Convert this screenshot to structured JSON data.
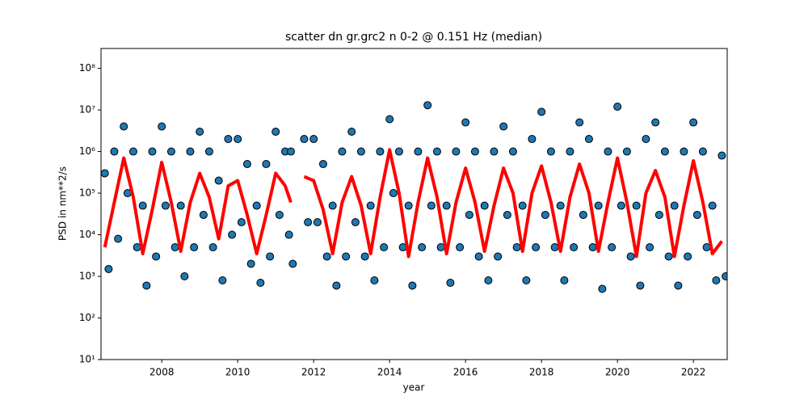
{
  "chart_data": {
    "type": "scatter",
    "title": "scatter dn gr.grc2 n 0-2 @ 0.151 Hz (median)",
    "xlabel": "year",
    "ylabel": "PSD in nm**2/s",
    "xlim": [
      2006.4,
      2022.89
    ],
    "xticks": [
      2008,
      2010,
      2012,
      2014,
      2016,
      2018,
      2020,
      2022
    ],
    "ylim": [
      10,
      300000000
    ],
    "yscale": "log",
    "yticks": [
      {
        "value": 10,
        "label": "10¹"
      },
      {
        "value": 100,
        "label": "10²"
      },
      {
        "value": 1000,
        "label": "10³"
      },
      {
        "value": 10000,
        "label": "10⁴"
      },
      {
        "value": 100000,
        "label": "10⁵"
      },
      {
        "value": 1000000,
        "label": "10⁶"
      },
      {
        "value": 10000000,
        "label": "10⁷"
      },
      {
        "value": 100000000,
        "label": "10⁸"
      }
    ],
    "series": [
      {
        "type": "scatter",
        "color": "#1f77b4",
        "edgecolor": "#000000",
        "x": [
          2006.5,
          2006.6,
          2006.75,
          2006.85,
          2007.0,
          2007.1,
          2007.25,
          2007.35,
          2007.5,
          2007.6,
          2007.75,
          2007.85,
          2008.0,
          2008.1,
          2008.25,
          2008.35,
          2008.5,
          2008.6,
          2008.75,
          2008.85,
          2009.0,
          2009.1,
          2009.25,
          2009.35,
          2009.5,
          2009.6,
          2009.75,
          2009.85,
          2010.0,
          2010.1,
          2010.25,
          2010.35,
          2010.5,
          2010.6,
          2010.75,
          2010.85,
          2011.0,
          2011.1,
          2011.25,
          2011.35,
          2011.4,
          2011.45,
          2011.75,
          2011.85,
          2012.0,
          2012.1,
          2012.25,
          2012.35,
          2012.5,
          2012.6,
          2012.75,
          2012.85,
          2013.0,
          2013.1,
          2013.25,
          2013.35,
          2013.5,
          2013.6,
          2013.75,
          2013.85,
          2014.0,
          2014.1,
          2014.25,
          2014.35,
          2014.5,
          2014.6,
          2014.75,
          2014.85,
          2015.0,
          2015.1,
          2015.25,
          2015.35,
          2015.5,
          2015.6,
          2015.75,
          2015.85,
          2016.0,
          2016.1,
          2016.25,
          2016.35,
          2016.5,
          2016.6,
          2016.75,
          2016.85,
          2017.0,
          2017.1,
          2017.25,
          2017.35,
          2017.5,
          2017.6,
          2017.75,
          2017.85,
          2018.0,
          2018.1,
          2018.25,
          2018.35,
          2018.5,
          2018.6,
          2018.75,
          2018.85,
          2019.0,
          2019.1,
          2019.25,
          2019.35,
          2019.5,
          2019.6,
          2019.75,
          2019.85,
          2020.0,
          2020.1,
          2020.25,
          2020.35,
          2020.5,
          2020.6,
          2020.75,
          2020.85,
          2021.0,
          2021.1,
          2021.25,
          2021.35,
          2021.5,
          2021.6,
          2021.75,
          2021.85,
          2022.0,
          2022.1,
          2022.25,
          2022.35,
          2022.5,
          2022.6,
          2022.75,
          2022.85
        ],
        "values": [
          300000,
          1500,
          1000000,
          8000,
          4000000,
          100000,
          1000000,
          5000,
          50000,
          600,
          1000000,
          3000,
          4000000,
          50000,
          1000000,
          5000,
          50000,
          1000,
          1000000,
          5000,
          3000000,
          30000,
          1000000,
          5000,
          200000,
          800,
          2000000,
          10000,
          2000000,
          20000,
          500000,
          2000,
          50000,
          700,
          500000,
          3000,
          3000000,
          30000,
          1000000,
          10000,
          1000000,
          2000,
          2000000,
          20000,
          2000000,
          20000,
          500000,
          3000,
          50000,
          600,
          1000000,
          3000,
          3000000,
          20000,
          1000000,
          3000,
          50000,
          800,
          1000000,
          5000,
          6000000,
          100000,
          1000000,
          5000,
          50000,
          600,
          1000000,
          5000,
          13000000,
          50000,
          1000000,
          5000,
          50000,
          700,
          1000000,
          5000,
          5000000,
          30000,
          1000000,
          3000,
          50000,
          800,
          1000000,
          3000,
          4000000,
          30000,
          1000000,
          5000,
          50000,
          800,
          2000000,
          5000,
          9000000,
          30000,
          1000000,
          5000,
          50000,
          800,
          1000000,
          5000,
          5000000,
          30000,
          2000000,
          5000,
          50000,
          500,
          1000000,
          5000,
          12000000,
          50000,
          1000000,
          3000,
          50000,
          600,
          2000000,
          5000,
          5000000,
          30000,
          1000000,
          3000,
          50000,
          600,
          1000000,
          3000,
          5000000,
          30000,
          1000000,
          5000,
          50000,
          800,
          800000,
          1000
        ]
      },
      {
        "type": "line",
        "color": "#ff0000",
        "x": [
          2006.5,
          2006.75,
          2007.0,
          2007.25,
          2007.5,
          2007.75,
          2008.0,
          2008.25,
          2008.5,
          2008.75,
          2009.0,
          2009.25,
          2009.5,
          2009.75,
          2010.0,
          2010.25,
          2010.5,
          2010.75,
          2011.0,
          2011.25,
          2011.4,
          2011.6,
          2011.75,
          2012.0,
          2012.25,
          2012.5,
          2012.75,
          2013.0,
          2013.25,
          2013.5,
          2013.75,
          2014.0,
          2014.25,
          2014.5,
          2014.75,
          2015.0,
          2015.25,
          2015.5,
          2015.75,
          2016.0,
          2016.25,
          2016.5,
          2016.75,
          2017.0,
          2017.25,
          2017.5,
          2017.75,
          2018.0,
          2018.25,
          2018.5,
          2018.75,
          2019.0,
          2019.25,
          2019.5,
          2019.75,
          2020.0,
          2020.25,
          2020.5,
          2020.75,
          2021.0,
          2021.25,
          2021.5,
          2021.75,
          2022.0,
          2022.25,
          2022.5,
          2022.75
        ],
        "values": [
          5000,
          60000,
          700000,
          80000,
          3500,
          40000,
          550000,
          60000,
          4000,
          60000,
          300000,
          80000,
          8000,
          150000,
          200000,
          30000,
          3500,
          30000,
          300000,
          150000,
          60000,
          null,
          250000,
          200000,
          40000,
          3500,
          60000,
          250000,
          50000,
          3500,
          80000,
          1100000,
          100000,
          3000,
          60000,
          700000,
          80000,
          3500,
          60000,
          400000,
          60000,
          4000,
          50000,
          400000,
          100000,
          4000,
          100000,
          450000,
          60000,
          4000,
          80000,
          500000,
          100000,
          4000,
          60000,
          700000,
          60000,
          3000,
          100000,
          350000,
          80000,
          3000,
          50000,
          600000,
          60000,
          3500,
          7000
        ]
      }
    ]
  }
}
